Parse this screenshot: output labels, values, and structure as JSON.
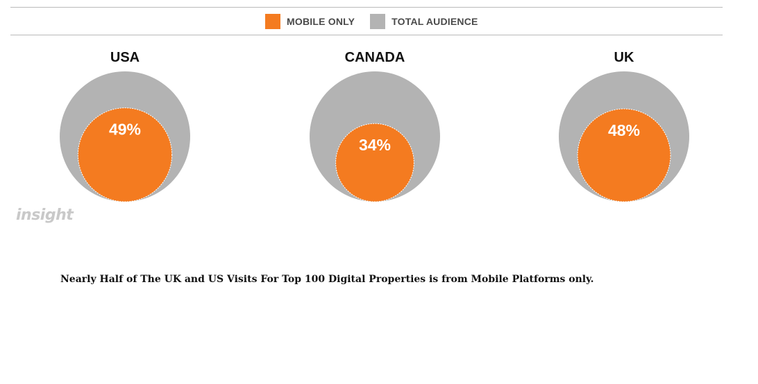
{
  "legend": [
    {
      "label": "MOBILE ONLY",
      "color": "#F47B20"
    },
    {
      "label": "TOTAL AUDIENCE",
      "color": "#B3B3B3"
    }
  ],
  "chart_data": {
    "type": "nested-circle",
    "series": [
      {
        "name": "MOBILE ONLY",
        "color": "#F47B20"
      },
      {
        "name": "TOTAL AUDIENCE",
        "color": "#B3B3B3"
      }
    ],
    "categories": [
      "USA",
      "CANADA",
      "UK"
    ],
    "values": [
      49,
      34,
      48
    ],
    "value_labels": [
      "49%",
      "34%",
      "48%"
    ],
    "unit": "%",
    "legend_position": "top-center"
  },
  "watermark": "insight",
  "caption": "Nearly Half of The UK and US Visits For Top 100 Digital Properties is from Mobile Platforms only."
}
